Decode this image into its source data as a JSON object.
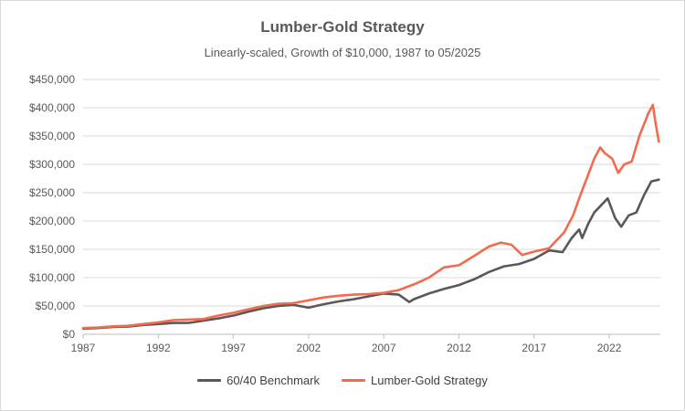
{
  "chart_data": {
    "type": "line",
    "title": "Lumber-Gold Strategy",
    "subtitle": "Linearly-scaled, Growth of $10,000, 1987 to 05/2025",
    "xlim": [
      1987,
      2025.4
    ],
    "ylim": [
      0,
      450000
    ],
    "x_ticks": [
      "1987",
      "1992",
      "1997",
      "2002",
      "2007",
      "2012",
      "2017",
      "2022"
    ],
    "y_ticks": [
      "$0",
      "$50,000",
      "$100,000",
      "$150,000",
      "$200,000",
      "$250,000",
      "$300,000",
      "$350,000",
      "$400,000",
      "$450,000"
    ],
    "grid": true,
    "legend_position": "bottom",
    "series": [
      {
        "name": "60/40 Benchmark",
        "color": "#595959",
        "points": [
          [
            1987,
            10000
          ],
          [
            1988,
            11000
          ],
          [
            1989,
            13000
          ],
          [
            1990,
            13500
          ],
          [
            1991,
            16500
          ],
          [
            1992,
            18000
          ],
          [
            1993,
            20000
          ],
          [
            1994,
            20000
          ],
          [
            1995,
            24000
          ],
          [
            1996,
            28000
          ],
          [
            1997,
            33000
          ],
          [
            1998,
            40000
          ],
          [
            1999,
            46000
          ],
          [
            2000,
            50000
          ],
          [
            2001,
            52000
          ],
          [
            2002,
            47000
          ],
          [
            2003,
            53000
          ],
          [
            2004,
            58000
          ],
          [
            2005,
            62000
          ],
          [
            2006,
            67000
          ],
          [
            2007,
            72000
          ],
          [
            2008,
            70000
          ],
          [
            2008.7,
            57000
          ],
          [
            2009,
            62000
          ],
          [
            2010,
            72000
          ],
          [
            2011,
            80000
          ],
          [
            2012,
            87000
          ],
          [
            2013,
            97000
          ],
          [
            2014,
            110000
          ],
          [
            2015,
            120000
          ],
          [
            2016,
            124000
          ],
          [
            2017,
            133000
          ],
          [
            2018,
            148000
          ],
          [
            2018.9,
            145000
          ],
          [
            2019.5,
            170000
          ],
          [
            2020,
            185000
          ],
          [
            2020.2,
            170000
          ],
          [
            2020.6,
            195000
          ],
          [
            2021,
            215000
          ],
          [
            2021.9,
            240000
          ],
          [
            2022.4,
            205000
          ],
          [
            2022.8,
            190000
          ],
          [
            2023.3,
            210000
          ],
          [
            2023.8,
            215000
          ],
          [
            2024.3,
            245000
          ],
          [
            2024.8,
            270000
          ],
          [
            2025.3,
            273000
          ]
        ]
      },
      {
        "name": "Lumber-Gold Strategy",
        "color": "#f26b4f",
        "points": [
          [
            1987,
            11000
          ],
          [
            1988,
            12000
          ],
          [
            1989,
            14000
          ],
          [
            1990,
            15000
          ],
          [
            1991,
            18000
          ],
          [
            1992,
            21000
          ],
          [
            1993,
            25000
          ],
          [
            1994,
            26000
          ],
          [
            1995,
            27000
          ],
          [
            1996,
            33000
          ],
          [
            1997,
            38000
          ],
          [
            1998,
            44000
          ],
          [
            1999,
            50000
          ],
          [
            2000,
            54000
          ],
          [
            2001,
            55000
          ],
          [
            2002,
            60000
          ],
          [
            2003,
            65000
          ],
          [
            2004,
            68000
          ],
          [
            2005,
            70000
          ],
          [
            2006,
            71000
          ],
          [
            2007,
            73000
          ],
          [
            2008,
            78000
          ],
          [
            2009,
            88000
          ],
          [
            2010,
            100000
          ],
          [
            2011,
            118000
          ],
          [
            2012,
            122000
          ],
          [
            2013,
            138000
          ],
          [
            2014,
            155000
          ],
          [
            2014.8,
            162000
          ],
          [
            2015.5,
            158000
          ],
          [
            2016.2,
            140000
          ],
          [
            2017,
            146000
          ],
          [
            2018,
            152000
          ],
          [
            2019,
            180000
          ],
          [
            2019.6,
            210000
          ],
          [
            2020,
            240000
          ],
          [
            2020.5,
            275000
          ],
          [
            2021,
            310000
          ],
          [
            2021.4,
            330000
          ],
          [
            2021.7,
            320000
          ],
          [
            2022.2,
            310000
          ],
          [
            2022.6,
            285000
          ],
          [
            2023,
            300000
          ],
          [
            2023.5,
            305000
          ],
          [
            2024,
            350000
          ],
          [
            2024.6,
            390000
          ],
          [
            2024.9,
            405000
          ],
          [
            2025.1,
            370000
          ],
          [
            2025.3,
            340000
          ]
        ]
      }
    ]
  }
}
